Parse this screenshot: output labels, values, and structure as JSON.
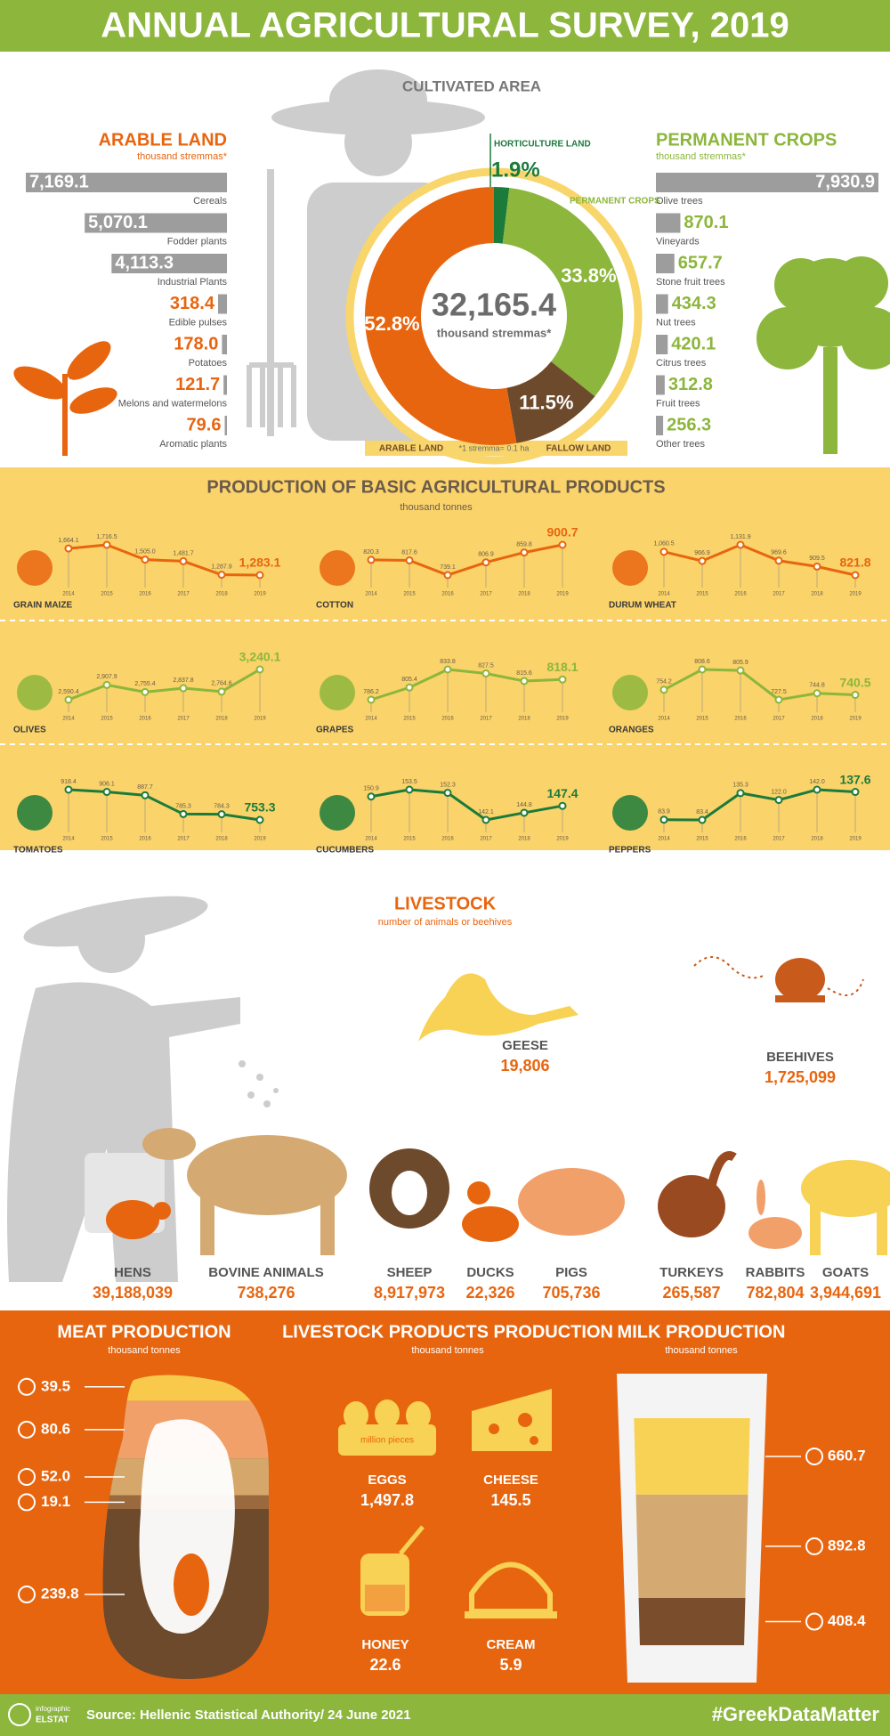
{
  "title": "ANNUAL AGRICULTURAL SURVEY, 2019",
  "cultivated_area": {
    "title": "CULTIVATED AREA",
    "total": "32,165.4",
    "unit": "thousand stremmas*",
    "note": "*1 stremma= 0.1 ha",
    "segments": [
      {
        "name": "HORTICULTURE LAND",
        "value": 1.9,
        "label": "1.9%",
        "color": "#1b7b3b"
      },
      {
        "name": "PERMANENT CROPS",
        "value": 33.8,
        "label": "33.8%",
        "color": "#8cb63c"
      },
      {
        "name": "FALLOW LAND",
        "value": 11.5,
        "label": "11.5%",
        "color": "#6e4a2c"
      },
      {
        "name": "ARABLE LAND",
        "value": 52.8,
        "label": "52.8%",
        "color": "#e8650f"
      }
    ]
  },
  "arable_land": {
    "title": "ARABLE LAND",
    "unit": "thousand stremmas*",
    "bar_color": "#9d9d9d",
    "label_color": "#e8650f",
    "items": [
      {
        "name": "Cereals",
        "value": 7169.1,
        "label": "7,169.1"
      },
      {
        "name": "Fodder plants",
        "value": 5070.1,
        "label": "5,070.1"
      },
      {
        "name": "Industrial Plants",
        "value": 4113.3,
        "label": "4,113.3"
      },
      {
        "name": "Edible pulses",
        "value": 318.4,
        "label": "318.4"
      },
      {
        "name": "Potatoes",
        "value": 178.0,
        "label": "178.0"
      },
      {
        "name": "Melons and watermelons",
        "value": 121.7,
        "label": "121.7"
      },
      {
        "name": "Aromatic plants",
        "value": 79.6,
        "label": "79.6"
      }
    ]
  },
  "permanent_crops": {
    "title": "PERMANENT CROPS",
    "unit": "thousand stremmas*",
    "bar_color": "#9d9d9d",
    "label_color": "#8cb63c",
    "items": [
      {
        "name": "Olive trees",
        "value": 7930.9,
        "label": "7,930.9"
      },
      {
        "name": "Vineyards",
        "value": 870.1,
        "label": "870.1"
      },
      {
        "name": "Stone fruit trees",
        "value": 657.7,
        "label": "657.7"
      },
      {
        "name": "Nut trees",
        "value": 434.3,
        "label": "434.3"
      },
      {
        "name": "Citrus trees",
        "value": 420.1,
        "label": "420.1"
      },
      {
        "name": "Fruit trees",
        "value": 312.8,
        "label": "312.8"
      },
      {
        "name": "Other trees",
        "value": 256.3,
        "label": "256.3"
      }
    ]
  },
  "production": {
    "title": "PRODUCTION OF BASIC AGRICULTURAL PRODUCTS",
    "unit": "thousand tonnes",
    "years": [
      "2014",
      "2015",
      "2016",
      "2017",
      "2018",
      "2019"
    ],
    "products": [
      {
        "name": "GRAIN MAIZE",
        "color": "#e8650f",
        "values": [
          1664.1,
          1716.5,
          1505.0,
          1481.7,
          1287.9,
          1283.1
        ],
        "labels": [
          "1,664.1",
          "1,716.5",
          "1,505.0",
          "1,481.7",
          "1,287.9",
          "1,283.1"
        ]
      },
      {
        "name": "COTTON",
        "color": "#e8650f",
        "values": [
          820.3,
          817.6,
          739.1,
          806.9,
          859.8,
          900.7
        ],
        "labels": [
          "820.3",
          "817.6",
          "739.1",
          "806.9",
          "859.8",
          "900.7"
        ]
      },
      {
        "name": "DURUM WHEAT",
        "color": "#e8650f",
        "values": [
          1060.5,
          966.9,
          1131.9,
          969.6,
          909.5,
          821.8
        ],
        "labels": [
          "1,060.5",
          "966.9",
          "1,131.9",
          "969.6",
          "909.5",
          "821.8"
        ]
      },
      {
        "name": "OLIVES",
        "color": "#8cb63c",
        "values": [
          2590.4,
          2907.9,
          2755.4,
          2837.8,
          2764.6,
          3240.1
        ],
        "labels": [
          "2,590.4",
          "2,907.9",
          "2,755.4",
          "2,837.8",
          "2,764.6",
          "3,240.1"
        ]
      },
      {
        "name": "GRAPES",
        "color": "#8cb63c",
        "values": [
          786.2,
          805.4,
          833.8,
          827.5,
          815.6,
          818.1
        ],
        "labels": [
          "786.2",
          "805.4",
          "833.8",
          "827.5",
          "815.6",
          "818.1"
        ]
      },
      {
        "name": "ORANGES",
        "color": "#8cb63c",
        "values": [
          754.2,
          808.6,
          805.9,
          727.5,
          744.8,
          740.5
        ],
        "labels": [
          "754.2",
          "808.6",
          "805.9",
          "727.5",
          "744.8",
          "740.5"
        ]
      },
      {
        "name": "TOMATOES",
        "color": "#1b7b3b",
        "values": [
          918.4,
          906.1,
          887.7,
          785.3,
          784.3,
          753.3
        ],
        "labels": [
          "918.4",
          "906.1",
          "887.7",
          "785.3",
          "784.3",
          "753.3"
        ]
      },
      {
        "name": "CUCUMBERS",
        "color": "#1b7b3b",
        "values": [
          150.9,
          153.5,
          152.3,
          142.1,
          144.8,
          147.4
        ],
        "labels": [
          "150.9",
          "153.5",
          "152.3",
          "142.1",
          "144.8",
          "147.4"
        ]
      },
      {
        "name": "PEPPERS",
        "color": "#1b7b3b",
        "values": [
          83.9,
          83.4,
          135.3,
          122.0,
          142.0,
          137.6
        ],
        "labels": [
          "83.9",
          "83.4",
          "135.3",
          "122.0",
          "142.0",
          "137.6"
        ]
      }
    ]
  },
  "livestock": {
    "title": "LIVESTOCK",
    "unit": "number of animals or beehives",
    "items": [
      {
        "name": "GEESE",
        "value": "19,806"
      },
      {
        "name": "BEEHIVES",
        "value": "1,725,099"
      },
      {
        "name": "HENS",
        "value": "39,188,039"
      },
      {
        "name": "BOVINE ANIMALS",
        "value": "738,276"
      },
      {
        "name": "SHEEP",
        "value": "8,917,973"
      },
      {
        "name": "DUCKS",
        "value": "22,326"
      },
      {
        "name": "PIGS",
        "value": "705,736"
      },
      {
        "name": "TURKEYS",
        "value": "265,587"
      },
      {
        "name": "RABBITS",
        "value": "782,804"
      },
      {
        "name": "GOATS",
        "value": "3,944,691"
      }
    ]
  },
  "meat_production": {
    "title": "MEAT PRODUCTION",
    "unit": "thousand tonnes",
    "items": [
      {
        "value": 39.5,
        "label": "39.5",
        "color": "#f8c94a"
      },
      {
        "value": 80.6,
        "label": "80.6",
        "color": "#f2a06a"
      },
      {
        "value": 52.0,
        "label": "52.0",
        "color": "#d6a76a"
      },
      {
        "value": 19.1,
        "label": "19.1",
        "color": "#9a6a3e"
      },
      {
        "value": 239.8,
        "label": "239.8",
        "color": "#6e4a2c"
      }
    ]
  },
  "livestock_products": {
    "title": "LIVESTOCK PRODUCTS PRODUCTION",
    "unit": "thousand tonnes",
    "items": [
      {
        "name": "EGGS",
        "value": "1,497.8",
        "note": "million pieces"
      },
      {
        "name": "CHEESE",
        "value": "145.5"
      },
      {
        "name": "HONEY",
        "value": "22.6"
      },
      {
        "name": "CREAM",
        "value": "5.9"
      }
    ]
  },
  "milk_production": {
    "title": "MILK PRODUCTION",
    "unit": "thousand tonnes",
    "items": [
      {
        "value": 660.7,
        "label": "660.7",
        "color": "#f8d254"
      },
      {
        "value": 892.8,
        "label": "892.8",
        "color": "#d4aa72"
      },
      {
        "value": 408.4,
        "label": "408.4",
        "color": "#7a4e2c"
      }
    ]
  },
  "footer": {
    "logo": [
      "infographic",
      "ELSTAT"
    ],
    "source": "Source: Hellenic Statistical Authority/ 24 June 2021",
    "hashtag": "#GreekDataMatter"
  }
}
